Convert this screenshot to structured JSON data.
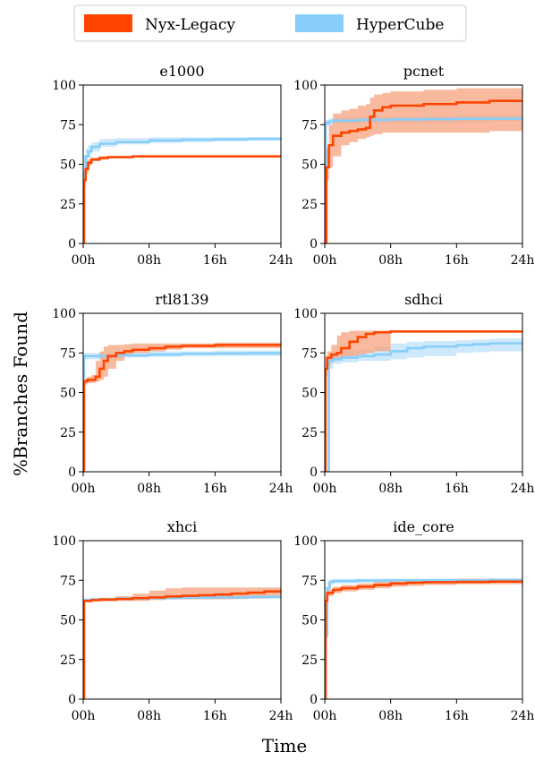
{
  "figure": {
    "ylabel": "%Branches Found",
    "xlabel": "Time",
    "legend": [
      {
        "name": "Nyx-Legacy",
        "color": "#ff4500",
        "band_color": "#f7a17e"
      },
      {
        "name": "HyperCube",
        "color": "#87cefa",
        "band_color": "#c2e4fb"
      }
    ]
  },
  "chart_data": [
    {
      "type": "line",
      "title": "e1000",
      "xlim": [
        0,
        24
      ],
      "ylim": [
        0,
        100
      ],
      "xticks": [
        "00h",
        "08h",
        "16h",
        "24h"
      ],
      "yticks": [
        "0",
        "25",
        "50",
        "75",
        "100"
      ],
      "series": [
        {
          "name": "Nyx-Legacy",
          "x": [
            0,
            0.1,
            0.3,
            0.6,
            1,
            2,
            3,
            6,
            12,
            24
          ],
          "y": [
            0,
            40,
            47,
            51,
            53,
            54,
            54.5,
            55,
            55,
            55
          ],
          "lo": [
            0,
            36,
            44,
            49,
            52,
            53,
            54,
            54.5,
            54.5,
            54.5
          ],
          "hi": [
            0,
            45,
            50,
            53,
            54,
            55,
            55,
            55.5,
            55.5,
            55.5
          ]
        },
        {
          "name": "HyperCube",
          "x": [
            0,
            0.1,
            0.3,
            0.6,
            1,
            2,
            4,
            8,
            12,
            16,
            20,
            24
          ],
          "y": [
            0,
            45,
            55,
            58,
            61,
            63,
            64,
            65,
            65.5,
            65.7,
            66,
            66.3
          ],
          "lo": [
            0,
            35,
            48,
            54,
            58,
            61,
            62.5,
            63.5,
            64,
            64.5,
            65,
            65.3
          ],
          "hi": [
            0,
            55,
            60,
            62,
            64,
            66,
            66.5,
            67,
            67,
            67,
            67.2,
            67.5
          ]
        }
      ]
    },
    {
      "type": "line",
      "title": "pcnet",
      "xlim": [
        0,
        24
      ],
      "ylim": [
        0,
        100
      ],
      "xticks": [
        "00h",
        "08h",
        "16h",
        "24h"
      ],
      "yticks": [
        "0",
        "25",
        "50",
        "75",
        "100"
      ],
      "series": [
        {
          "name": "Nyx-Legacy",
          "x": [
            0,
            0.2,
            0.5,
            1,
            2,
            3,
            4,
            5,
            5.5,
            6,
            7,
            8,
            12,
            16,
            20,
            24
          ],
          "y": [
            0,
            48,
            62,
            68,
            70,
            71,
            72,
            73,
            80,
            84,
            86,
            87,
            88,
            89,
            90,
            90
          ],
          "lo": [
            0,
            40,
            48,
            55,
            62,
            64,
            66,
            67,
            68,
            69,
            70,
            70,
            70,
            70,
            71,
            71
          ],
          "hi": [
            0,
            60,
            75,
            82,
            84,
            85,
            87,
            88,
            92,
            94,
            95,
            96,
            97,
            98,
            98,
            98
          ]
        },
        {
          "name": "HyperCube",
          "x": [
            0,
            0.1,
            0.5,
            1,
            4,
            8,
            12,
            16,
            20,
            24
          ],
          "y": [
            0,
            76,
            77,
            77.5,
            78,
            78.3,
            78.5,
            78.7,
            78.8,
            79
          ],
          "lo": [
            0,
            74,
            75,
            75.5,
            76,
            76,
            76.5,
            76.5,
            77,
            77
          ],
          "hi": [
            0,
            78,
            79,
            79.5,
            80,
            80,
            80.5,
            80.5,
            81,
            81
          ]
        }
      ]
    },
    {
      "type": "line",
      "title": "rtl8139",
      "xlim": [
        0,
        24
      ],
      "ylim": [
        0,
        100
      ],
      "xticks": [
        "00h",
        "08h",
        "16h",
        "24h"
      ],
      "yticks": [
        "0",
        "25",
        "50",
        "75",
        "100"
      ],
      "series": [
        {
          "name": "Nyx-Legacy",
          "x": [
            0,
            0.1,
            0.5,
            1,
            1.5,
            2,
            2.5,
            3,
            4,
            5,
            6,
            8,
            10,
            12,
            16,
            24
          ],
          "y": [
            0,
            57,
            58,
            58,
            60,
            65,
            70,
            73,
            75,
            76,
            77,
            78,
            79,
            79.5,
            80,
            80
          ],
          "lo": [
            0,
            55,
            56,
            56,
            57,
            58,
            60,
            65,
            70,
            73,
            75,
            76,
            77,
            78,
            78,
            78
          ],
          "hi": [
            0,
            59,
            60,
            61,
            70,
            76,
            79,
            80,
            80,
            80.5,
            81,
            81,
            81,
            81,
            81.5,
            81.5
          ]
        },
        {
          "name": "HyperCube",
          "x": [
            0,
            0.1,
            1,
            4,
            8,
            12,
            16,
            20,
            24
          ],
          "y": [
            0,
            73,
            73,
            73.5,
            74,
            74.5,
            74.7,
            74.8,
            75
          ],
          "lo": [
            0,
            71,
            71,
            72,
            72.5,
            73,
            73,
            73,
            73.5
          ],
          "hi": [
            0,
            75,
            75,
            75.5,
            76,
            76,
            76.5,
            76.5,
            76.5
          ]
        }
      ]
    },
    {
      "type": "line",
      "title": "sdhci",
      "xlim": [
        0,
        24
      ],
      "ylim": [
        0,
        100
      ],
      "xticks": [
        "00h",
        "08h",
        "16h",
        "24h"
      ],
      "yticks": [
        "0",
        "25",
        "50",
        "75",
        "100"
      ],
      "series": [
        {
          "name": "Nyx-Legacy",
          "x": [
            0,
            0.1,
            0.3,
            0.8,
            1.5,
            2,
            3,
            4,
            5,
            6,
            8,
            12,
            16,
            24
          ],
          "y": [
            0,
            65,
            72,
            74,
            75,
            78,
            82,
            85,
            87,
            88,
            88.5,
            88.5,
            88.5,
            88.5
          ],
          "lo": [
            0,
            60,
            68,
            70,
            71,
            72,
            73,
            74,
            75,
            76,
            88,
            88,
            88,
            88
          ],
          "hi": [
            0,
            72,
            76,
            80,
            86,
            88,
            89,
            89,
            89,
            89,
            89,
            89,
            89,
            89
          ]
        },
        {
          "name": "HyperCube",
          "x": [
            0,
            0.3,
            0.5,
            1,
            2,
            4,
            6,
            8,
            10,
            12,
            16,
            18,
            20,
            24
          ],
          "y": [
            0,
            0,
            70,
            71,
            72,
            73,
            74,
            76,
            78,
            79,
            80,
            80.5,
            81,
            81.5
          ],
          "lo": [
            0,
            0,
            65,
            68,
            69,
            70,
            70,
            71,
            72,
            73,
            75,
            75.5,
            76,
            76
          ],
          "hi": [
            0,
            0,
            75,
            75,
            76,
            77,
            79,
            81,
            82,
            82.5,
            83,
            83.5,
            84,
            84
          ]
        }
      ]
    },
    {
      "type": "line",
      "title": "xhci",
      "xlim": [
        0,
        24
      ],
      "ylim": [
        0,
        100
      ],
      "xticks": [
        "00h",
        "08h",
        "16h",
        "24h"
      ],
      "yticks": [
        "0",
        "25",
        "50",
        "75",
        "100"
      ],
      "series": [
        {
          "name": "Nyx-Legacy",
          "x": [
            0,
            0.1,
            1,
            2,
            4,
            6,
            8,
            10,
            12,
            14,
            16,
            18,
            20,
            22,
            24
          ],
          "y": [
            0,
            62,
            62.5,
            62.8,
            63.2,
            63.7,
            64.2,
            64.8,
            65.2,
            65.6,
            66,
            66.6,
            67.2,
            68,
            68.4
          ],
          "lo": [
            0,
            61,
            61.5,
            61.8,
            62,
            62,
            62.5,
            63,
            63,
            63,
            63,
            63.2,
            63.5,
            63.8,
            64
          ],
          "hi": [
            0,
            63,
            63.5,
            64,
            65,
            66.5,
            68.5,
            70,
            70.5,
            70.5,
            70.5,
            70.5,
            70.5,
            70.5,
            70.5
          ]
        },
        {
          "name": "HyperCube",
          "x": [
            0,
            0.1,
            1,
            4,
            8,
            12,
            16,
            20,
            24
          ],
          "y": [
            0,
            62.5,
            63,
            63.5,
            63.8,
            64,
            64.2,
            64.5,
            64.8
          ],
          "lo": [
            0,
            61.5,
            62,
            62.5,
            62.8,
            63,
            63.2,
            63.4,
            63.6
          ],
          "hi": [
            0,
            63.5,
            64,
            64.5,
            64.8,
            65,
            65.2,
            65.5,
            65.8
          ]
        }
      ]
    },
    {
      "type": "line",
      "title": "ide_core",
      "xlim": [
        0,
        24
      ],
      "ylim": [
        0,
        100
      ],
      "xticks": [
        "00h",
        "08h",
        "16h",
        "24h"
      ],
      "yticks": [
        "0",
        "25",
        "50",
        "75",
        "100"
      ],
      "series": [
        {
          "name": "Nyx-Legacy",
          "x": [
            0,
            0.1,
            0.3,
            1,
            2,
            4,
            6,
            8,
            10,
            12,
            16,
            20,
            24
          ],
          "y": [
            0,
            62,
            67,
            69,
            70,
            71,
            72,
            73,
            73.5,
            73.8,
            74,
            74.2,
            74.5
          ],
          "lo": [
            0,
            60,
            65,
            67,
            68,
            69,
            70,
            71,
            71.5,
            72,
            72.5,
            72.5,
            73
          ],
          "hi": [
            0,
            65,
            69,
            71,
            72,
            73,
            74,
            74.5,
            75,
            75.5,
            76,
            76,
            76
          ]
        },
        {
          "name": "HyperCube",
          "x": [
            0,
            0.1,
            0.3,
            0.6,
            1,
            4,
            8,
            12,
            16,
            20,
            24
          ],
          "y": [
            0,
            40,
            70,
            74,
            74.5,
            74.8,
            75,
            75,
            75,
            75.2,
            75.3
          ],
          "lo": [
            0,
            35,
            66,
            72,
            73,
            73.5,
            74,
            74,
            74,
            74,
            74
          ],
          "hi": [
            0,
            45,
            74,
            75.5,
            76,
            76,
            76,
            76,
            76,
            76.2,
            76.3
          ]
        }
      ]
    }
  ]
}
